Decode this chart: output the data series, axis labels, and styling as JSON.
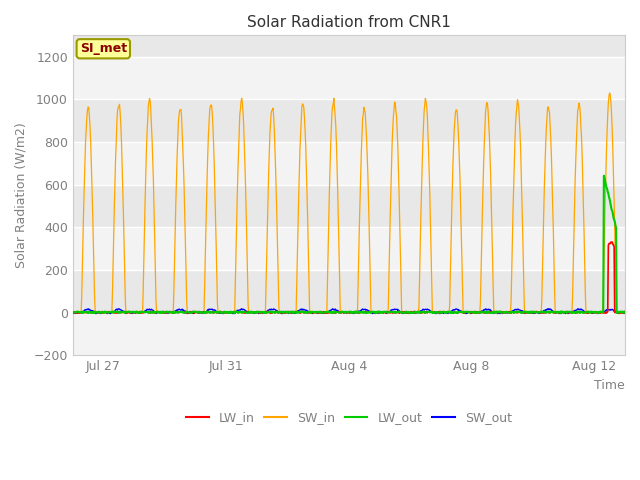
{
  "title": "Solar Radiation from CNR1",
  "xlabel": "Time",
  "ylabel": "Solar Radiation (W/m2)",
  "ylim": [
    -200,
    1300
  ],
  "yticks": [
    -200,
    0,
    200,
    400,
    600,
    800,
    1000,
    1200
  ],
  "xtick_positions": [
    1,
    5,
    9,
    13,
    17
  ],
  "xtick_labels": [
    "Jul 27",
    "Jul 31",
    "Aug 4",
    "Aug 8",
    "Aug 12"
  ],
  "n_days": 18,
  "bg_color": "#ffffff",
  "plot_bg_color": "#e8e8e8",
  "band_color_light": "#f0f0f0",
  "band_color_dark": "#d8d8d8",
  "grid_color": "#ffffff",
  "SW_in_color": "#FFA500",
  "LW_in_color": "#FF0000",
  "LW_out_color": "#00CC00",
  "SW_out_color": "#0000FF",
  "annotation_label": "SI_met",
  "annotation_bg": "#FFFF99",
  "annotation_border": "#999900",
  "annotation_text_color": "#8B0000",
  "tick_color": "#808080",
  "spine_color": "#cccccc"
}
